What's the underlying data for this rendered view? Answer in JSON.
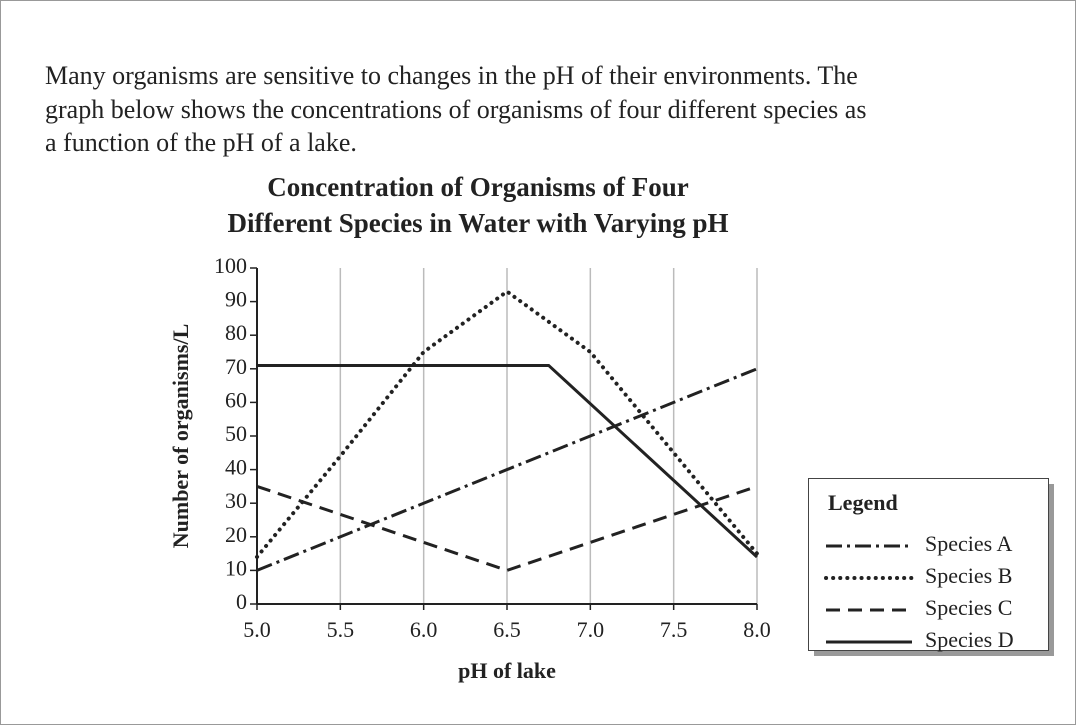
{
  "intro": [
    "Many organisms are sensitive to changes in the pH of their environments.  The",
    "graph below shows the concentrations of organisms of four different species as",
    "a function of the pH of a lake."
  ],
  "chart_data": {
    "type": "line",
    "title": [
      "Concentration of Organisms of Four",
      "Different Species in Water with Varying pH"
    ],
    "x_label": "pH of lake",
    "y_label": "Number of organisms/L",
    "legend_title": "Legend",
    "legend": "bottom-right outside",
    "grid": "vertical",
    "xlim": [
      5,
      8
    ],
    "ylim": [
      0,
      100
    ],
    "xticks": [
      {
        "value": 5,
        "label": "5.0"
      },
      {
        "value": 5.5,
        "label": "5.5"
      },
      {
        "value": 6,
        "label": "6.0"
      },
      {
        "value": 6.5,
        "label": "6.5"
      },
      {
        "value": 7,
        "label": "7.0"
      },
      {
        "value": 7.5,
        "label": "7.5"
      },
      {
        "value": 8,
        "label": "8.0"
      }
    ],
    "yticks": [
      0,
      10,
      20,
      30,
      40,
      50,
      60,
      70,
      80,
      90,
      100
    ],
    "series": [
      {
        "name": "Species A",
        "color": "#222222",
        "line_style": "dash-dot",
        "x": [
          5,
          8
        ],
        "values": [
          10,
          70
        ]
      },
      {
        "name": "Species B",
        "color": "#222222",
        "line_style": "dotted",
        "x": [
          5,
          5.5,
          6,
          6.5,
          7,
          7.5,
          8
        ],
        "values": [
          14,
          44,
          75,
          93,
          75,
          45,
          15
        ]
      },
      {
        "name": "Species C",
        "color": "#222222",
        "line_style": "dashed",
        "x": [
          5,
          6.5,
          8
        ],
        "values": [
          35,
          10,
          35
        ]
      },
      {
        "name": "Species D",
        "color": "#222222",
        "line_style": "solid",
        "x": [
          5,
          6.75,
          8
        ],
        "values": [
          71,
          71,
          14
        ]
      }
    ]
  }
}
